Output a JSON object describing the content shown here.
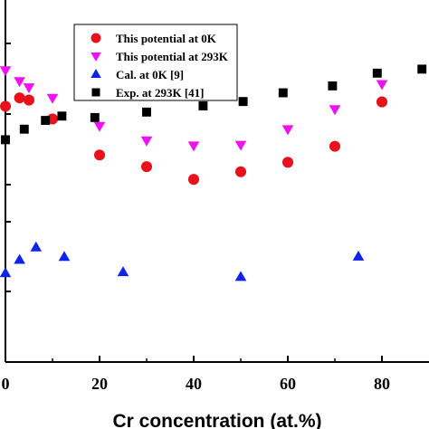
{
  "chart_data": {
    "type": "scatter",
    "xlabel": "Cr concentration (at.%)",
    "ylabel": "",
    "xlim": [
      0,
      90
    ],
    "ylim": [
      0,
      1
    ],
    "x_ticks": [
      0,
      20,
      40,
      60,
      80
    ],
    "x_tick_labels": [
      "0",
      "20",
      "40",
      "60",
      "80"
    ],
    "legend_position": "top-center",
    "series": [
      {
        "name": "This potential at 0K",
        "marker": "circle",
        "color": "#e8121c",
        "points": [
          [
            0,
            0.703
          ],
          [
            3,
            0.726
          ],
          [
            5,
            0.72
          ],
          [
            10,
            0.668
          ],
          [
            20,
            0.569
          ],
          [
            30,
            0.537
          ],
          [
            40,
            0.502
          ],
          [
            50,
            0.523
          ],
          [
            60,
            0.549
          ],
          [
            70,
            0.593
          ],
          [
            80,
            0.715
          ]
        ]
      },
      {
        "name": "This potential at 293K",
        "marker": "triangle-down",
        "color": "#ee12ee",
        "points": [
          [
            0,
            0.802
          ],
          [
            3,
            0.772
          ],
          [
            5,
            0.755
          ],
          [
            10,
            0.726
          ],
          [
            20,
            0.649
          ],
          [
            30,
            0.609
          ],
          [
            40,
            0.595
          ],
          [
            50,
            0.597
          ],
          [
            60,
            0.64
          ],
          [
            70,
            0.695
          ],
          [
            80,
            0.764
          ]
        ]
      },
      {
        "name": "Cal. at 0K [9]",
        "marker": "triangle-up",
        "color": "#1024e8",
        "points": [
          [
            0,
            0.244
          ],
          [
            3,
            0.281
          ],
          [
            6.5,
            0.315
          ],
          [
            12.5,
            0.289
          ],
          [
            25,
            0.247
          ],
          [
            50,
            0.234
          ],
          [
            75,
            0.29
          ]
        ]
      },
      {
        "name": "Exp. at 293K [41]",
        "marker": "square",
        "color": "#000000",
        "points": [
          [
            0,
            0.611
          ],
          [
            4,
            0.64
          ],
          [
            8.5,
            0.664
          ],
          [
            12,
            0.676
          ],
          [
            19,
            0.672
          ],
          [
            30,
            0.687
          ],
          [
            42,
            0.704
          ],
          [
            50.5,
            0.716
          ],
          [
            59,
            0.74
          ],
          [
            69.5,
            0.759
          ],
          [
            79,
            0.794
          ],
          [
            88.5,
            0.805
          ]
        ]
      }
    ]
  }
}
